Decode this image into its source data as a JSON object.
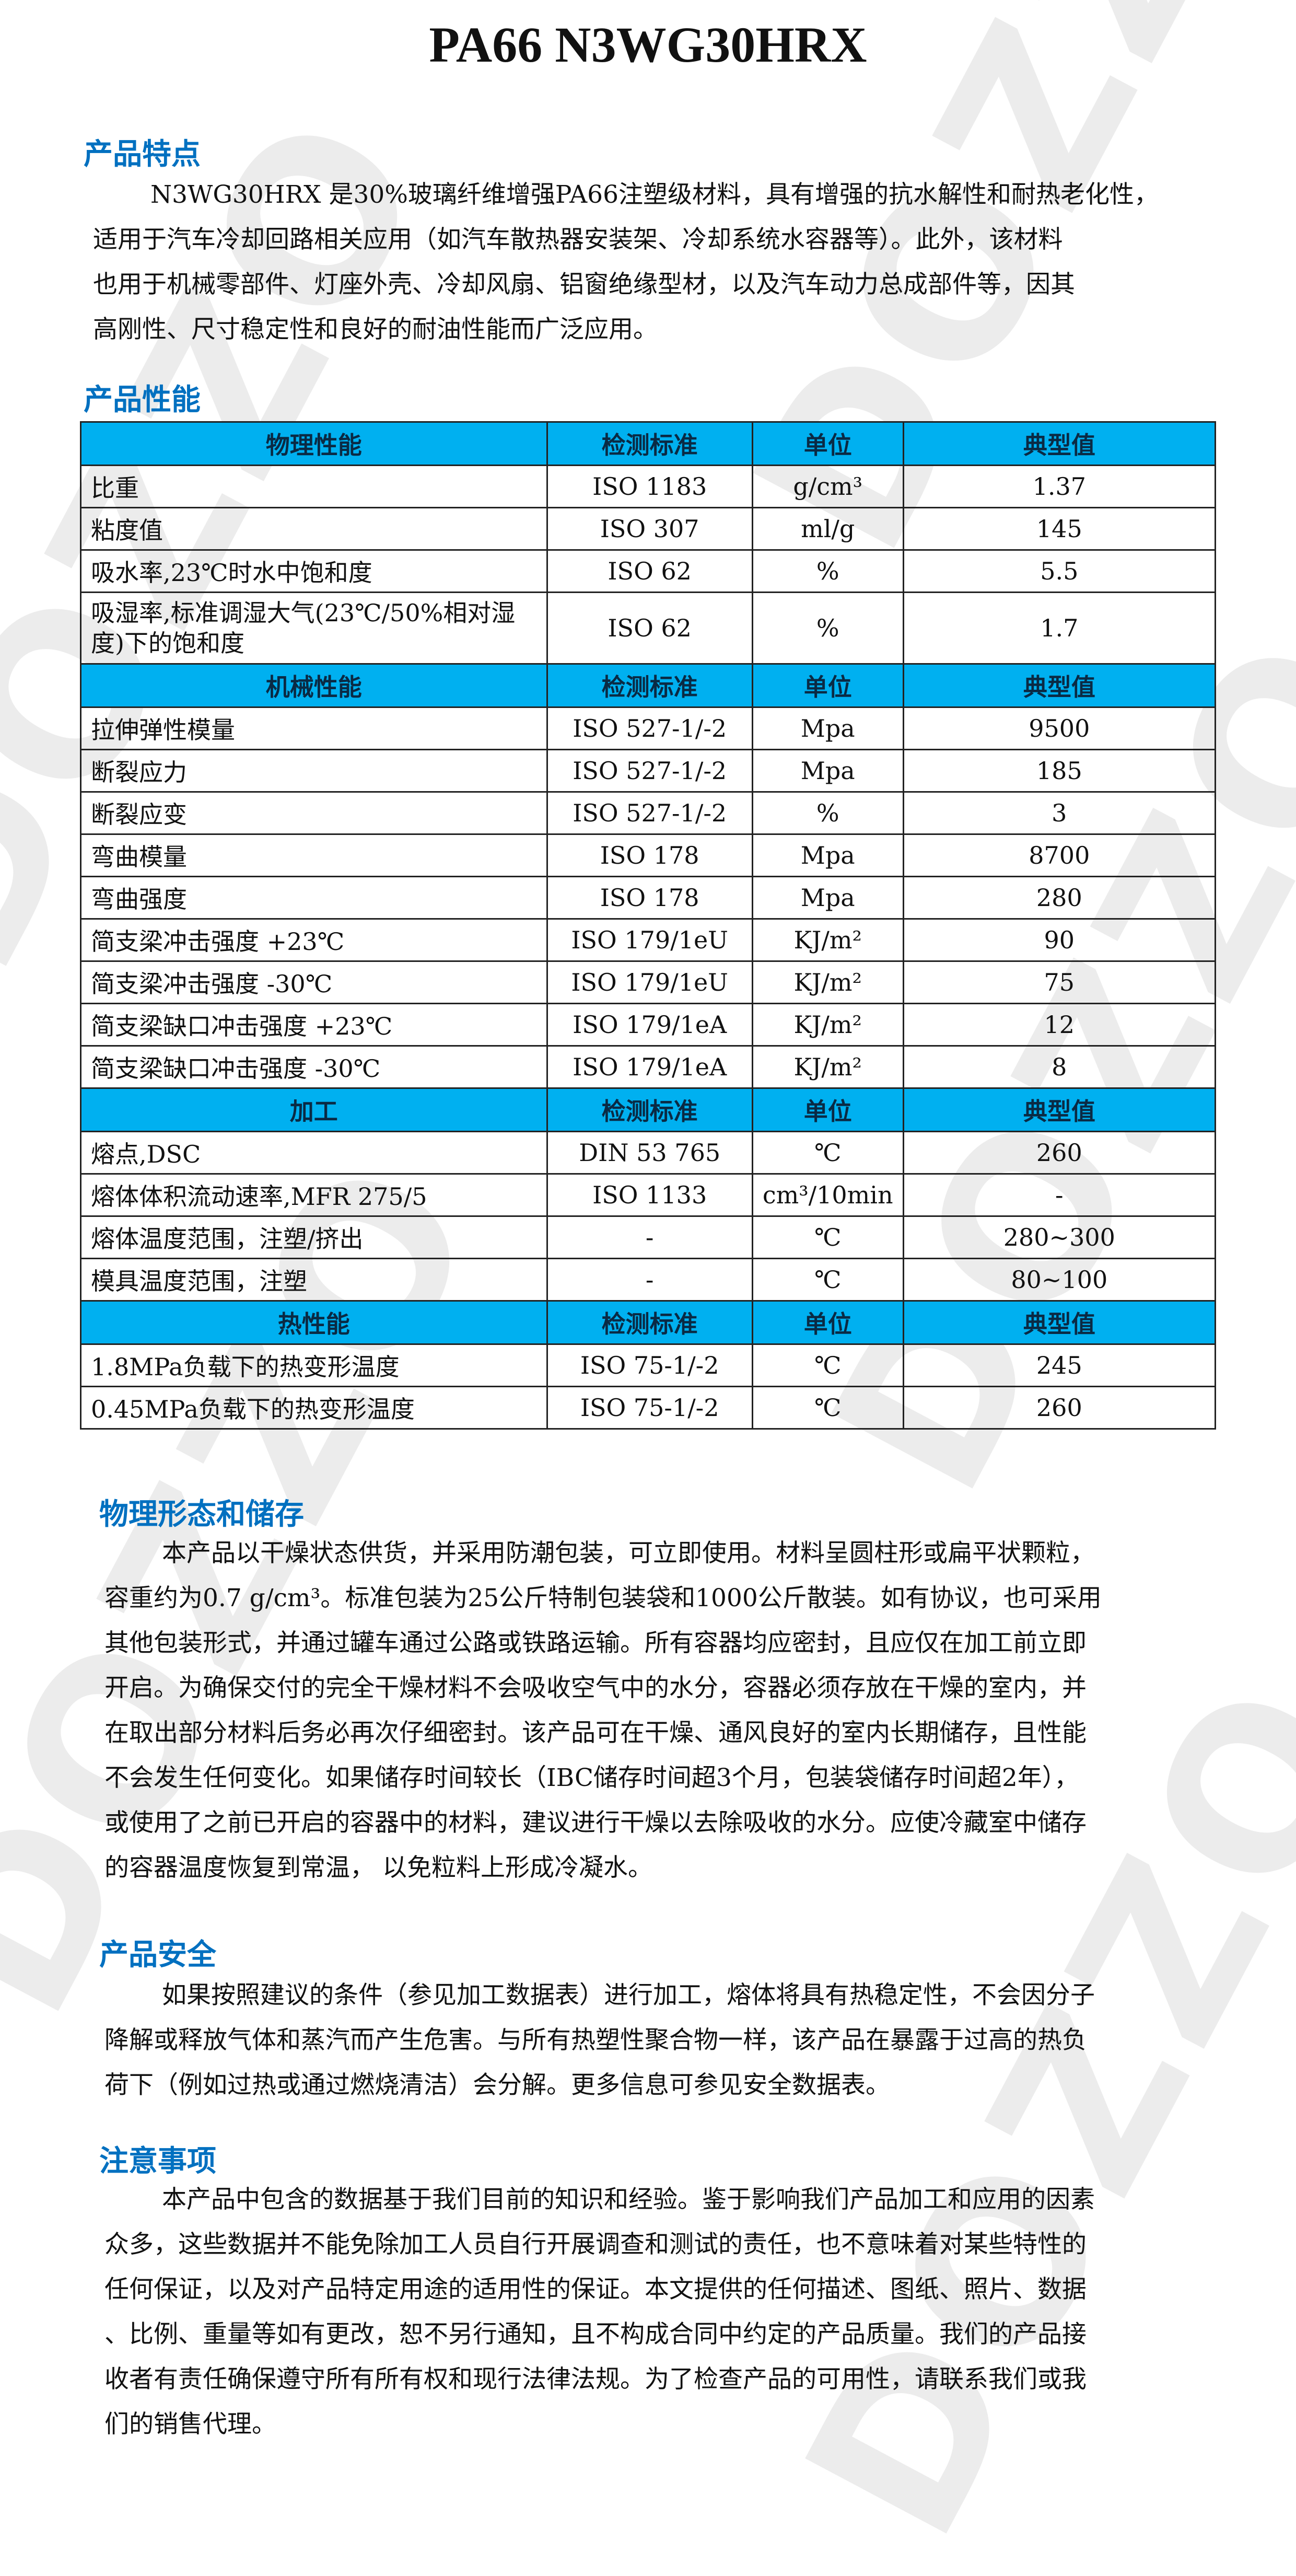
{
  "watermark": "DOZZO",
  "title": "PA66 N3WG30HRX",
  "features": {
    "heading": "产品特点",
    "lines": [
      "N3WG30HRX 是30%玻璃纤维增强PA66注塑级材料，具有增强的抗水解性和耐热老化性，",
      "适用于汽车冷却回路相关应用（如汽车散热器安装架、冷却系统水容器等）。此外，该材料",
      "也用于机械零部件、灯座外壳、冷却风扇、铝窗绝缘型材，以及汽车动力总成部件等，因其",
      "高刚性、尺寸稳定性和良好的耐油性能而广泛应用。"
    ]
  },
  "performance": {
    "heading": "产品性能",
    "sections": [
      {
        "header": [
          "物理性能",
          "检测标准",
          "单位",
          "典型值"
        ],
        "rows": [
          [
            "比重",
            "ISO 1183",
            "g/cm³",
            "1.37"
          ],
          [
            "粘度值",
            "ISO 307",
            "ml/g",
            "145"
          ],
          [
            "吸水率,23℃时水中饱和度",
            "ISO 62",
            "%",
            "5.5"
          ],
          [
            "吸湿率,标准调湿大气(23℃/50%相对湿度)下的饱和度",
            "ISO 62",
            "%",
            "1.7"
          ]
        ]
      },
      {
        "header": [
          "机械性能",
          "检测标准",
          "单位",
          "典型值"
        ],
        "rows": [
          [
            "拉伸弹性模量",
            "ISO 527-1/-2",
            "Mpa",
            "9500"
          ],
          [
            "断裂应力",
            "ISO 527-1/-2",
            "Mpa",
            "185"
          ],
          [
            "断裂应变",
            "ISO 527-1/-2",
            "%",
            "3"
          ],
          [
            "弯曲模量",
            "ISO 178",
            "Mpa",
            "8700"
          ],
          [
            "弯曲强度",
            "ISO 178",
            "Mpa",
            "280"
          ],
          [
            "简支梁冲击强度 +23℃",
            "ISO 179/1eU",
            "KJ/m²",
            "90"
          ],
          [
            "简支梁冲击强度 -30℃",
            "ISO 179/1eU",
            "KJ/m²",
            "75"
          ],
          [
            "简支梁缺口冲击强度 +23℃",
            "ISO 179/1eA",
            "KJ/m²",
            "12"
          ],
          [
            "简支梁缺口冲击强度 -30℃",
            "ISO 179/1eA",
            "KJ/m²",
            "8"
          ]
        ]
      },
      {
        "header": [
          "加工",
          "检测标准",
          "单位",
          "典型值"
        ],
        "rows": [
          [
            "熔点,DSC",
            "DIN 53 765",
            "℃",
            "260"
          ],
          [
            "熔体体积流动速率,MFR 275/5",
            "ISO 1133",
            "cm³/10min",
            "-"
          ],
          [
            "熔体温度范围，注塑/挤出",
            "-",
            "℃",
            "280~300"
          ],
          [
            "模具温度范围，注塑",
            "-",
            "℃",
            "80~100"
          ]
        ]
      },
      {
        "header": [
          "热性能",
          "检测标准",
          "单位",
          "典型值"
        ],
        "rows": [
          [
            "1.8MPa负载下的热变形温度",
            "ISO 75-1/-2",
            "℃",
            "245"
          ],
          [
            "0.45MPa负载下的热变形温度",
            "ISO 75-1/-2",
            "℃",
            "260"
          ]
        ]
      }
    ]
  },
  "storage": {
    "heading": "物理形态和储存",
    "lines": [
      "本产品以干燥状态供货，并采用防潮包装，可立即使用。材料呈圆柱形或扁平状颗粒，",
      "容重约为0.7 g/cm³。标准包装为25公斤特制包装袋和1000公斤散装。如有协议，也可采用",
      "其他包装形式，并通过罐车通过公路或铁路运输。所有容器均应密封，且应仅在加工前立即",
      "开启。为确保交付的完全干燥材料不会吸收空气中的水分，容器必须存放在干燥的室内，并",
      "在取出部分材料后务必再次仔细密封。该产品可在干燥、通风良好的室内长期储存，且性能",
      "不会发生任何变化。如果储存时间较长（IBC储存时间超3个月，包装袋储存时间超2年），",
      "或使用了之前已开启的容器中的材料，建议进行干燥以去除吸收的水分。应使冷藏室中储存",
      "的容器温度恢复到常温， 以免粒料上形成冷凝水。"
    ]
  },
  "safety": {
    "heading": "产品安全",
    "lines": [
      "如果按照建议的条件（参见加工数据表）进行加工，熔体将具有热稳定性，不会因分子",
      "降解或释放气体和蒸汽而产生危害。与所有热塑性聚合物一样，该产品在暴露于过高的热负",
      "荷下（例如过热或通过燃烧清洁）会分解。更多信息可参见安全数据表。"
    ]
  },
  "notice": {
    "heading": "注意事项",
    "lines": [
      "本产品中包含的数据基于我们目前的知识和经验。鉴于影响我们产品加工和应用的因素",
      "众多，这些数据并不能免除加工人员自行开展调查和测试的责任，也不意味着对某些特性的",
      "任何保证，以及对产品特定用途的适用性的保证。本文提供的任何描述、图纸、照片、数据",
      "、比例、重量等如有更改，恕不另行通知，且不构成合同中约定的产品质量。我们的产品接",
      "收者有责任确保遵守所有所有权和现行法律法规。为了检查产品的可用性，请联系我们或我",
      "们的销售代理。"
    ]
  }
}
